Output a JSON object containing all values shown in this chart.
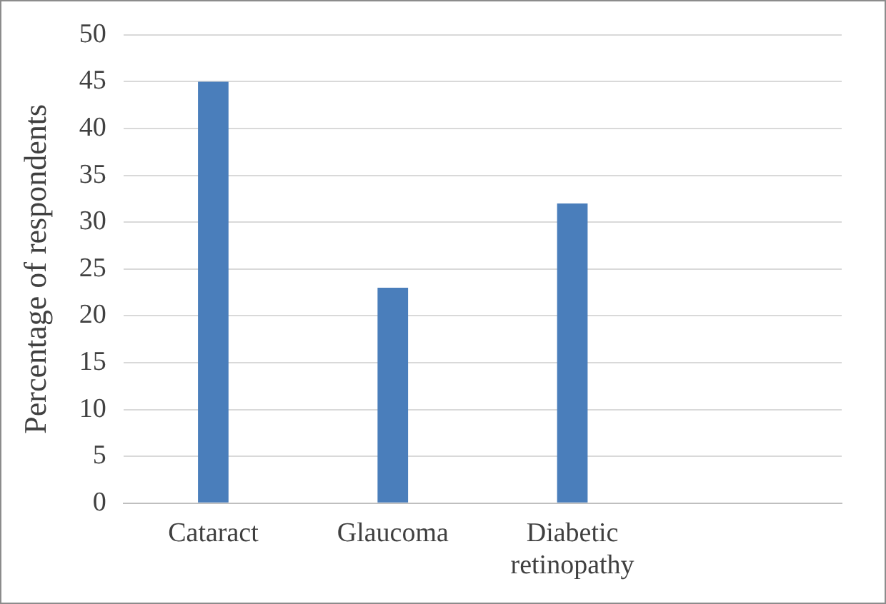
{
  "chart_data": {
    "type": "bar",
    "ylabel": "Percentage of respondents",
    "categories": [
      "Cataract",
      "Glaucoma",
      "Diabetic retinopathy",
      null
    ],
    "values": [
      45,
      23,
      32,
      null
    ],
    "color": "#4a7ebb",
    "ylim": [
      0,
      50
    ],
    "yticks": [
      0,
      5,
      10,
      15,
      20,
      25,
      30,
      35,
      40,
      45,
      50
    ],
    "grid": "y",
    "legend": false
  }
}
